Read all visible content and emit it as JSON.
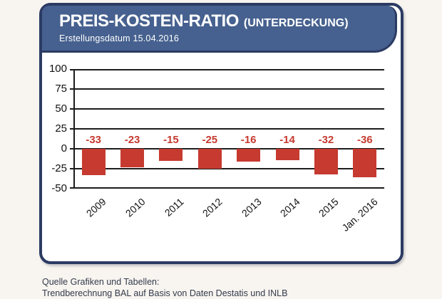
{
  "header": {
    "title": "PREIS-KOSTEN-RATIO",
    "title_suffix": "(UNTERDECKUNG)",
    "subtitle": "Erstellungsdatum 15.04.2016"
  },
  "footer": {
    "line1": "Quelle Grafiken und Tabellen:",
    "line2": "Trendberechnung BAL auf Basis von Daten Destatis und INLB"
  },
  "colors": {
    "header_blue": "#46618F",
    "border_navy": "#2B3B63",
    "bar_red": "#C63A30",
    "background": "#F8F5F1"
  },
  "chart_data": {
    "type": "bar",
    "categories": [
      "2009",
      "2010",
      "2011",
      "2012",
      "2013",
      "2014",
      "2015",
      "Jan. 2016"
    ],
    "values": [
      -33,
      -23,
      -15,
      -25,
      -16,
      -14,
      -32,
      -36
    ],
    "title": "PREIS-KOSTEN-RATIO (UNTERDECKUNG)",
    "xlabel": "",
    "ylabel": "",
    "ylim": [
      -50,
      100
    ],
    "yticks": [
      100,
      75,
      50,
      25,
      0,
      -25,
      -50
    ],
    "grid": true,
    "legend": false,
    "bar_color": "#C63A30"
  }
}
